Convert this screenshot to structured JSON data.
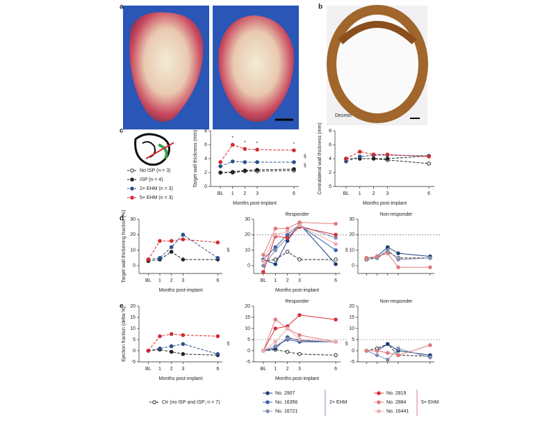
{
  "panels": {
    "a": "a",
    "b": "b",
    "c": "c",
    "d": "d",
    "e": "e"
  },
  "stain": "Desmin",
  "legend_groups": [
    "2× EHM",
    "5× EHM"
  ],
  "chart_data": [
    {
      "type": "line",
      "ylabel": "Target wall thickness (mm)",
      "xlabel": "Months post-implant",
      "x": [
        0,
        1,
        2,
        3,
        6
      ],
      "xlim": [
        -0.8,
        6.4
      ],
      "xticks": [
        {
          "value": 0,
          "label": "BL"
        },
        1,
        2,
        3,
        6
      ],
      "ylim": [
        0,
        8
      ],
      "yticks": [
        0,
        2,
        4,
        6,
        8
      ],
      "series": [
        {
          "name": "No ISP (n = 3)",
          "color": "#222222",
          "style": "dashed",
          "marker": "open",
          "values": [
            2.0,
            2.0,
            2.2,
            2.2,
            2.3
          ]
        },
        {
          "name": "ISP (n = 4)",
          "color": "#222222",
          "style": "dashed",
          "values": [
            2.0,
            2.1,
            2.3,
            2.4,
            2.5
          ]
        },
        {
          "name": "2× EHM (n = 3)",
          "color": "#2b4f8c",
          "style": "dashed",
          "values": [
            2.9,
            3.6,
            3.5,
            3.5,
            3.5
          ]
        },
        {
          "name": "5× EHM (n = 3)",
          "color": "#d6282e",
          "style": "dashed",
          "values": [
            3.5,
            6.0,
            5.4,
            5.3,
            5.2
          ]
        }
      ],
      "annotations": [
        {
          "text": "*",
          "x": 1,
          "y": 7.0
        },
        {
          "text": "*",
          "x": 2,
          "y": 6.3
        },
        {
          "text": "*",
          "x": 3,
          "y": 6.2
        },
        {
          "text": "*",
          "x": 6,
          "y": 6.1
        },
        {
          "text": "§",
          "x": 6.9,
          "y": 4.3
        },
        {
          "text": "§",
          "x": 6.9,
          "y": 3.0
        }
      ]
    },
    {
      "type": "line",
      "ylabel": "Contralateral wall thickness (mm)",
      "xlabel": "Months post-implant",
      "x": [
        0,
        1,
        2,
        3,
        6
      ],
      "xlim": [
        -0.8,
        6.4
      ],
      "xticks": [
        {
          "value": 0,
          "label": "BL"
        },
        1,
        2,
        3,
        6
      ],
      "ylim": [
        0,
        8
      ],
      "yticks": [
        0,
        2,
        4,
        6,
        8
      ],
      "series": [
        {
          "color": "#222222",
          "style": "dashed",
          "marker": "open",
          "values": [
            4.0,
            4.0,
            4.0,
            3.8,
            3.3
          ]
        },
        {
          "color": "#222222",
          "style": "dashed",
          "values": [
            4.0,
            4.0,
            4.0,
            4.0,
            4.4
          ]
        },
        {
          "color": "#2b4f8c",
          "style": "dashed",
          "values": [
            3.6,
            4.3,
            4.5,
            4.5,
            4.4
          ]
        },
        {
          "color": "#d6282e",
          "style": "dashed",
          "values": [
            4.0,
            5.0,
            4.6,
            4.6,
            4.3
          ]
        }
      ]
    },
    {
      "type": "line",
      "ylabel": "Target wall thickening fraction (%)",
      "xlabel": "Months post-implant",
      "x": [
        0,
        1,
        2,
        3,
        6
      ],
      "xlim": [
        -0.8,
        6.4
      ],
      "xticks": [
        {
          "value": 0,
          "label": "BL"
        },
        1,
        2,
        3,
        6
      ],
      "ylim": [
        -5,
        30
      ],
      "yticks": [
        0,
        10,
        20,
        30
      ],
      "series": [
        {
          "color": "#222222",
          "style": "dashed",
          "values": [
            3,
            4,
            9,
            4,
            4
          ]
        },
        {
          "color": "#2b4f8c",
          "style": "dashed",
          "values": [
            4,
            5,
            12,
            20,
            5
          ]
        },
        {
          "color": "#d6282e",
          "style": "dashed",
          "values": [
            4,
            16,
            16,
            17,
            15
          ]
        }
      ],
      "annotations": [
        {
          "text": "§",
          "x": 6.9,
          "y": 10
        }
      ]
    },
    {
      "type": "line",
      "title": "Responder",
      "xlabel": "Months post-implant",
      "x": [
        0,
        1,
        2,
        3,
        6
      ],
      "xlim": [
        -0.8,
        6.4
      ],
      "xticks": [
        {
          "value": 0,
          "label": "BL"
        },
        1,
        2,
        3,
        6
      ],
      "ylim": [
        -5,
        30
      ],
      "yticks": [
        0,
        10,
        20,
        30
      ],
      "hline": 20,
      "series": [
        {
          "name": "Ctr (no ISP and ISP; n = 7)",
          "color": "#222222",
          "style": "dashed",
          "marker": "open",
          "values": [
            3,
            4,
            9,
            4,
            4
          ]
        },
        {
          "name": "No. 2907",
          "color": "#1f3f7a",
          "values": [
            4,
            1,
            16,
            27,
            1
          ]
        },
        {
          "name": "No. 16356",
          "color": "#3c64a8",
          "values": [
            4,
            12,
            20,
            26,
            10
          ]
        },
        {
          "name": "No. 16721",
          "color": "#7f8db0",
          "values": [
            0,
            10,
            18,
            26,
            18
          ]
        },
        {
          "name": "No. 2819",
          "color": "#d93036",
          "values": [
            -4,
            19,
            18,
            25,
            20
          ]
        },
        {
          "name": "No. 2884",
          "color": "#e07a80",
          "values": [
            7,
            24,
            24,
            28,
            27
          ]
        },
        {
          "name": "No. 16441",
          "color": "#ebaeb2",
          "values": [
            3,
            20,
            22,
            26,
            14
          ]
        }
      ],
      "annotations": [
        {
          "text": "§",
          "x": 6.9,
          "y": 10
        }
      ]
    },
    {
      "type": "line",
      "title": "Non-responder",
      "x": [
        0,
        1,
        2,
        3,
        6
      ],
      "xlim": [
        -0.8,
        6.4
      ],
      "ylim": [
        -5,
        30
      ],
      "yticks": [
        0,
        10,
        20,
        30
      ],
      "hline": 20,
      "series": [
        {
          "color": "#222222",
          "style": "dashed",
          "marker": "open",
          "values": [
            4,
            5,
            9,
            5,
            5
          ]
        },
        {
          "color": "#1f3f7a",
          "values": [
            5,
            6,
            12,
            8,
            6
          ]
        },
        {
          "color": "#7f8db0",
          "values": [
            5,
            5,
            10,
            4,
            5
          ]
        },
        {
          "color": "#e07a80",
          "values": [
            5,
            6,
            8,
            -1,
            -1
          ]
        }
      ]
    },
    {
      "type": "line",
      "ylabel": "Ejection fraction (delta %)",
      "xlabel": "Months post-implant",
      "x": [
        0,
        1,
        2,
        3,
        6
      ],
      "xlim": [
        -0.8,
        6.4
      ],
      "xticks": [
        {
          "value": 0,
          "label": "BL"
        },
        1,
        2,
        3,
        6
      ],
      "ylim": [
        -5,
        20
      ],
      "yticks": [
        -5,
        0,
        5,
        10,
        15,
        20
      ],
      "series": [
        {
          "color": "#222222",
          "style": "dashed",
          "values": [
            0,
            0.5,
            -0.5,
            -1.5,
            -2
          ]
        },
        {
          "color": "#2b4f8c",
          "style": "dashed",
          "values": [
            0,
            1,
            2,
            3,
            -1.5
          ]
        },
        {
          "color": "#d6282e",
          "style": "dashed",
          "values": [
            0,
            6.5,
            7.5,
            7,
            6.5
          ]
        }
      ],
      "annotations": [
        {
          "text": "§",
          "x": 6.9,
          "y": 3
        }
      ]
    },
    {
      "type": "line",
      "title": "Responder",
      "xlabel": "Months post-implant",
      "x": [
        0,
        1,
        2,
        3,
        6
      ],
      "xlim": [
        -0.8,
        6.4
      ],
      "xticks": [
        {
          "value": 0,
          "label": "BL"
        },
        1,
        2,
        3,
        6
      ],
      "ylim": [
        -5,
        20
      ],
      "yticks": [
        -5,
        0,
        5,
        10,
        15,
        20
      ],
      "hline": 5,
      "series": [
        {
          "color": "#222222",
          "style": "dashed",
          "marker": "open",
          "values": [
            0,
            0.5,
            -0.5,
            -1.5,
            -2
          ]
        },
        {
          "color": "#1f3f7a",
          "values": [
            0,
            1,
            6,
            4.5,
            4
          ]
        },
        {
          "color": "#3c64a8",
          "values": [
            0,
            2,
            5,
            4,
            4
          ]
        },
        {
          "color": "#7f8db0",
          "values": [
            0,
            2,
            5.5,
            5,
            4
          ]
        },
        {
          "color": "#d93036",
          "values": [
            0,
            10,
            11,
            16,
            14
          ]
        },
        {
          "color": "#e07a80",
          "values": [
            0,
            14,
            10,
            7,
            4
          ]
        },
        {
          "color": "#ebaeb2",
          "values": [
            0,
            4,
            10,
            5,
            4
          ]
        }
      ],
      "annotations": [
        {
          "text": "§",
          "x": 6.9,
          "y": 3
        }
      ]
    },
    {
      "type": "line",
      "title": "Non-responder",
      "x": [
        0,
        1,
        2,
        3,
        6
      ],
      "xlim": [
        -0.8,
        6.4
      ],
      "ylim": [
        -5,
        20
      ],
      "yticks": [
        -5,
        0,
        5,
        10,
        15,
        20
      ],
      "hline": 5,
      "series": [
        {
          "color": "#222222",
          "style": "dashed",
          "marker": "open",
          "values": [
            0,
            1,
            3,
            -2,
            -2.5
          ]
        },
        {
          "color": "#1f3f7a",
          "values": [
            0,
            0,
            3,
            0,
            -2
          ]
        },
        {
          "color": "#7f8db0",
          "values": [
            0,
            -2,
            -4,
            1,
            -3
          ]
        },
        {
          "color": "#e07a80",
          "values": [
            0,
            0,
            -1,
            -2,
            2.5
          ]
        }
      ]
    }
  ]
}
